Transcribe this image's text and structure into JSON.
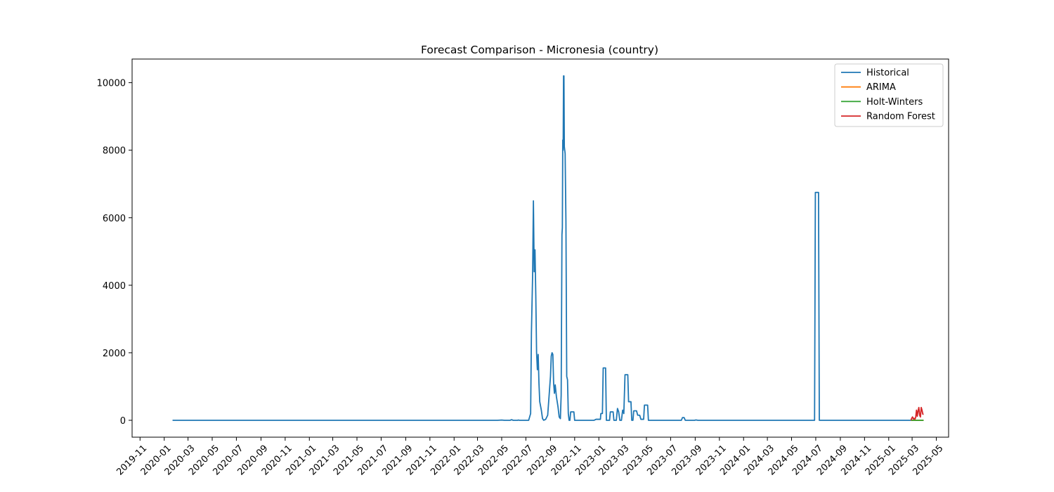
{
  "chart_data": {
    "type": "line",
    "title": "Forecast Comparison - Micronesia (country)",
    "xlabel": "",
    "ylabel": "",
    "xlim": [
      "2019-10-12",
      "2025-06-01"
    ],
    "ylim": [
      -500,
      10700
    ],
    "grid": false,
    "legend_position": "top-right",
    "x_ticks": [
      "2019-11",
      "2020-01",
      "2020-03",
      "2020-05",
      "2020-07",
      "2020-09",
      "2020-11",
      "2021-01",
      "2021-03",
      "2021-05",
      "2021-07",
      "2021-09",
      "2021-11",
      "2022-01",
      "2022-03",
      "2022-05",
      "2022-07",
      "2022-09",
      "2022-11",
      "2023-01",
      "2023-03",
      "2023-05",
      "2023-07",
      "2023-09",
      "2023-11",
      "2024-01",
      "2024-03",
      "2024-05",
      "2024-07",
      "2024-09",
      "2024-11",
      "2025-01",
      "2025-03",
      "2025-05"
    ],
    "y_ticks": [
      0,
      2000,
      4000,
      6000,
      8000,
      10000
    ],
    "series": [
      {
        "name": "Historical",
        "color": "#1f77b4",
        "points": [
          [
            "2020-01-22",
            0
          ],
          [
            "2022-04-20",
            0
          ],
          [
            "2022-05-01",
            8
          ],
          [
            "2022-05-08",
            0
          ],
          [
            "2022-05-22",
            0
          ],
          [
            "2022-05-26",
            18
          ],
          [
            "2022-05-30",
            0
          ],
          [
            "2022-06-10",
            0
          ],
          [
            "2022-06-12",
            8
          ],
          [
            "2022-06-15",
            0
          ],
          [
            "2022-07-08",
            0
          ],
          [
            "2022-07-10",
            80
          ],
          [
            "2022-07-13",
            200
          ],
          [
            "2022-07-15",
            2600
          ],
          [
            "2022-07-18",
            4300
          ],
          [
            "2022-07-20",
            6500
          ],
          [
            "2022-07-22",
            4400
          ],
          [
            "2022-07-24",
            5050
          ],
          [
            "2022-07-26",
            3700
          ],
          [
            "2022-07-28",
            2000
          ],
          [
            "2022-07-30",
            1500
          ],
          [
            "2022-08-01",
            1950
          ],
          [
            "2022-08-03",
            1100
          ],
          [
            "2022-08-05",
            550
          ],
          [
            "2022-08-09",
            300
          ],
          [
            "2022-08-12",
            50
          ],
          [
            "2022-08-15",
            0
          ],
          [
            "2022-08-20",
            30
          ],
          [
            "2022-08-25",
            150
          ],
          [
            "2022-08-29",
            800
          ],
          [
            "2022-09-01",
            1300
          ],
          [
            "2022-09-03",
            1900
          ],
          [
            "2022-09-05",
            2000
          ],
          [
            "2022-09-07",
            1950
          ],
          [
            "2022-09-09",
            1100
          ],
          [
            "2022-09-11",
            800
          ],
          [
            "2022-09-13",
            1050
          ],
          [
            "2022-09-16",
            700
          ],
          [
            "2022-09-20",
            400
          ],
          [
            "2022-09-23",
            100
          ],
          [
            "2022-09-26",
            50
          ],
          [
            "2022-09-28",
            750
          ],
          [
            "2022-09-30",
            5500
          ],
          [
            "2022-10-01",
            5700
          ],
          [
            "2022-10-02",
            8300
          ],
          [
            "2022-10-03",
            8000
          ],
          [
            "2022-10-04",
            10200
          ],
          [
            "2022-10-05",
            10200
          ],
          [
            "2022-10-06",
            8100
          ],
          [
            "2022-10-08",
            7900
          ],
          [
            "2022-10-10",
            5900
          ],
          [
            "2022-10-12",
            1300
          ],
          [
            "2022-10-14",
            1200
          ],
          [
            "2022-10-16",
            200
          ],
          [
            "2022-10-18",
            0
          ],
          [
            "2022-10-20",
            0
          ],
          [
            "2022-10-22",
            250
          ],
          [
            "2022-10-30",
            250
          ],
          [
            "2022-11-01",
            0
          ],
          [
            "2022-12-20",
            0
          ],
          [
            "2022-12-25",
            30
          ],
          [
            "2023-01-05",
            30
          ],
          [
            "2023-01-06",
            200
          ],
          [
            "2023-01-10",
            200
          ],
          [
            "2023-01-12",
            1550
          ],
          [
            "2023-01-18",
            1550
          ],
          [
            "2023-01-20",
            0
          ],
          [
            "2023-01-28",
            0
          ],
          [
            "2023-01-30",
            250
          ],
          [
            "2023-02-06",
            250
          ],
          [
            "2023-02-08",
            0
          ],
          [
            "2023-02-14",
            0
          ],
          [
            "2023-02-17",
            350
          ],
          [
            "2023-02-20",
            250
          ],
          [
            "2023-02-23",
            0
          ],
          [
            "2023-02-27",
            0
          ],
          [
            "2023-03-02",
            300
          ],
          [
            "2023-03-05",
            200
          ],
          [
            "2023-03-08",
            1350
          ],
          [
            "2023-03-15",
            1350
          ],
          [
            "2023-03-17",
            550
          ],
          [
            "2023-03-23",
            550
          ],
          [
            "2023-03-25",
            0
          ],
          [
            "2023-03-28",
            0
          ],
          [
            "2023-03-30",
            280
          ],
          [
            "2023-04-06",
            280
          ],
          [
            "2023-04-09",
            150
          ],
          [
            "2023-04-14",
            150
          ],
          [
            "2023-04-17",
            30
          ],
          [
            "2023-04-24",
            30
          ],
          [
            "2023-04-26",
            450
          ],
          [
            "2023-05-04",
            450
          ],
          [
            "2023-05-06",
            0
          ],
          [
            "2023-07-28",
            0
          ],
          [
            "2023-07-31",
            80
          ],
          [
            "2023-08-04",
            80
          ],
          [
            "2023-08-07",
            0
          ],
          [
            "2023-08-30",
            0
          ],
          [
            "2023-09-03",
            10
          ],
          [
            "2023-09-08",
            0
          ],
          [
            "2024-06-28",
            0
          ],
          [
            "2024-06-30",
            6750
          ],
          [
            "2024-07-08",
            6750
          ],
          [
            "2024-07-10",
            0
          ],
          [
            "2025-02-26",
            0
          ]
        ]
      },
      {
        "name": "ARIMA",
        "color": "#ff7f0e",
        "points": [
          [
            "2025-02-26",
            0
          ],
          [
            "2025-03-30",
            0
          ]
        ]
      },
      {
        "name": "Holt-Winters",
        "color": "#2ca02c",
        "points": [
          [
            "2025-02-26",
            0
          ],
          [
            "2025-03-30",
            0
          ]
        ]
      },
      {
        "name": "Random Forest",
        "color": "#d62728",
        "points": [
          [
            "2025-02-26",
            0
          ],
          [
            "2025-02-28",
            60
          ],
          [
            "2025-03-02",
            100
          ],
          [
            "2025-03-04",
            40
          ],
          [
            "2025-03-06",
            60
          ],
          [
            "2025-03-08",
            30
          ],
          [
            "2025-03-10",
            80
          ],
          [
            "2025-03-12",
            300
          ],
          [
            "2025-03-14",
            120
          ],
          [
            "2025-03-16",
            280
          ],
          [
            "2025-03-18",
            380
          ],
          [
            "2025-03-20",
            150
          ],
          [
            "2025-03-22",
            100
          ],
          [
            "2025-03-24",
            380
          ],
          [
            "2025-03-26",
            300
          ],
          [
            "2025-03-28",
            180
          ],
          [
            "2025-03-30",
            180
          ]
        ]
      }
    ]
  }
}
